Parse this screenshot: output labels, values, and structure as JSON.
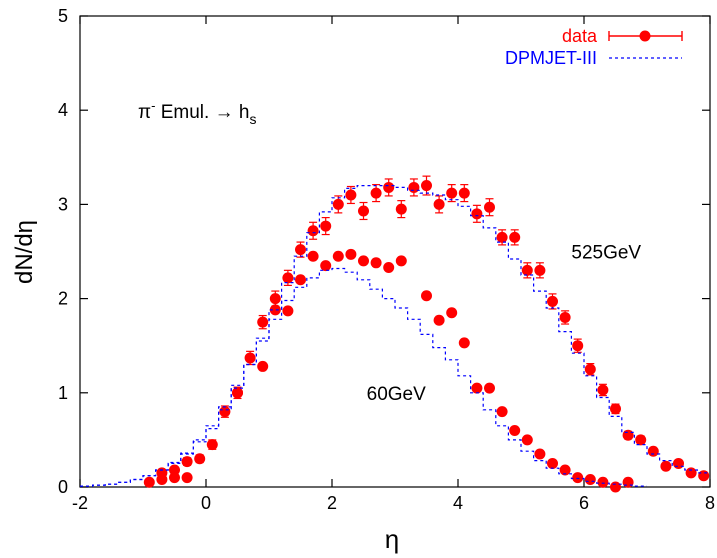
{
  "chart_data": {
    "type": "scatter",
    "xlabel": "η",
    "ylabel": "dN/dη",
    "xlim": [
      -2,
      8
    ],
    "ylim": [
      0,
      5
    ],
    "xticks": [
      "-2",
      "0",
      "2",
      "4",
      "6",
      "8"
    ],
    "yticks": [
      "0",
      "1",
      "2",
      "3",
      "4",
      "5"
    ],
    "grid": false,
    "legend_position": "top-right",
    "annotation": {
      "main": "π",
      "sup": "-",
      "rest": " Emul. → h",
      "sub": "s"
    },
    "labels": [
      {
        "text": "525GeV",
        "x": 5.8,
        "y": 2.5
      },
      {
        "text": "60GeV",
        "x": 2.55,
        "y": 1.0
      }
    ],
    "legend": [
      {
        "name": "data",
        "style": "points",
        "color": "#ff0000"
      },
      {
        "name": "DPMJET-III",
        "style": "dashed",
        "color": "#0000ff"
      }
    ],
    "series": [
      {
        "name": "data",
        "group": "525GeV",
        "color": "#ff0000",
        "x": [
          -0.9,
          -0.7,
          -0.5,
          -0.3,
          -0.1,
          0.1,
          0.3,
          0.5,
          0.7,
          0.9,
          1.1,
          1.3,
          1.5,
          1.7,
          1.9,
          2.1,
          2.3,
          2.5,
          2.7,
          2.9,
          3.1,
          3.3,
          3.5,
          3.7,
          3.9,
          4.1,
          4.3,
          4.5,
          4.7,
          4.9,
          5.1,
          5.3,
          5.5,
          5.7,
          5.9,
          6.1,
          6.3,
          6.5,
          6.7,
          6.9,
          7.1,
          7.3,
          7.5,
          7.7,
          7.9
        ],
        "y": [
          0.05,
          0.15,
          0.18,
          0.27,
          0.3,
          0.45,
          0.8,
          1.0,
          1.37,
          1.75,
          2.0,
          2.22,
          2.52,
          2.72,
          2.77,
          3.0,
          3.1,
          2.93,
          3.12,
          3.18,
          2.95,
          3.18,
          3.2,
          3.0,
          3.12,
          3.12,
          2.9,
          2.97,
          2.65,
          2.65,
          2.3,
          2.3,
          1.97,
          1.8,
          1.5,
          1.25,
          1.03,
          0.83,
          0.55,
          0.5,
          0.38,
          0.22,
          0.25,
          0.15,
          0.12
        ],
        "err": [
          0.02,
          0.03,
          0.03,
          0.04,
          0.04,
          0.05,
          0.06,
          0.06,
          0.07,
          0.07,
          0.08,
          0.08,
          0.08,
          0.09,
          0.09,
          0.09,
          0.09,
          0.09,
          0.09,
          0.09,
          0.09,
          0.09,
          0.1,
          0.09,
          0.09,
          0.09,
          0.09,
          0.09,
          0.08,
          0.08,
          0.08,
          0.08,
          0.08,
          0.07,
          0.07,
          0.06,
          0.06,
          0.05,
          0.04,
          0.04,
          0.03,
          0.03,
          0.03,
          0.02,
          0.02
        ]
      },
      {
        "name": "data",
        "group": "60GeV",
        "color": "#ff0000",
        "x": [
          -0.7,
          -0.5,
          -0.3,
          0.5,
          0.9,
          1.1,
          1.3,
          1.5,
          1.7,
          1.9,
          2.1,
          2.3,
          2.5,
          2.7,
          2.9,
          3.1,
          3.5,
          3.7,
          3.9,
          4.1,
          4.3,
          4.5,
          4.7,
          4.9,
          5.1,
          5.3,
          5.5,
          5.7,
          5.9,
          6.1,
          6.3,
          6.5,
          6.7
        ],
        "y": [
          0.08,
          0.1,
          0.1,
          1.0,
          1.28,
          1.88,
          1.87,
          2.2,
          2.45,
          2.35,
          2.45,
          2.47,
          2.4,
          2.38,
          2.33,
          2.4,
          2.03,
          1.77,
          1.85,
          1.53,
          1.05,
          1.05,
          0.8,
          0.6,
          0.5,
          0.35,
          0.25,
          0.18,
          0.1,
          0.08,
          0.05,
          0.0,
          0.05
        ]
      },
      {
        "name": "DPMJET-III",
        "group": "525GeV",
        "color": "#0000ff",
        "style": "dashed-step",
        "x": [
          -2.0,
          -1.8,
          -1.6,
          -1.4,
          -1.2,
          -1.0,
          -0.8,
          -0.6,
          -0.4,
          -0.2,
          0.0,
          0.2,
          0.4,
          0.6,
          0.8,
          1.0,
          1.2,
          1.4,
          1.6,
          1.8,
          2.0,
          2.2,
          2.4,
          2.6,
          2.8,
          3.0,
          3.2,
          3.4,
          3.6,
          3.8,
          4.0,
          4.2,
          4.4,
          4.6,
          4.8,
          5.0,
          5.2,
          5.4,
          5.6,
          5.8,
          6.0,
          6.2,
          6.4,
          6.6,
          6.8,
          7.0,
          7.2,
          7.4,
          7.6,
          7.8
        ],
        "y": [
          0.01,
          0.02,
          0.03,
          0.05,
          0.08,
          0.12,
          0.18,
          0.25,
          0.35,
          0.48,
          0.62,
          0.82,
          1.05,
          1.3,
          1.58,
          1.88,
          2.17,
          2.45,
          2.7,
          2.92,
          3.07,
          3.17,
          3.2,
          3.2,
          3.2,
          3.18,
          3.15,
          3.12,
          3.1,
          3.05,
          2.98,
          2.88,
          2.75,
          2.6,
          2.42,
          2.25,
          2.08,
          1.9,
          1.65,
          1.42,
          1.18,
          0.95,
          0.75,
          0.58,
          0.45,
          0.35,
          0.28,
          0.22,
          0.18,
          0.15
        ]
      },
      {
        "name": "DPMJET-III",
        "group": "60GeV",
        "color": "#0000ff",
        "style": "dashed-step",
        "x": [
          -2.0,
          -1.8,
          -1.6,
          -1.4,
          -1.2,
          -1.0,
          -0.8,
          -0.6,
          -0.4,
          -0.2,
          0.0,
          0.2,
          0.4,
          0.6,
          0.8,
          1.0,
          1.2,
          1.4,
          1.6,
          1.8,
          2.0,
          2.2,
          2.4,
          2.6,
          2.8,
          3.0,
          3.2,
          3.4,
          3.6,
          3.8,
          4.0,
          4.2,
          4.4,
          4.6,
          4.8,
          5.0,
          5.2,
          5.4,
          5.6,
          5.8,
          6.0,
          6.2,
          6.4,
          6.6,
          6.8
        ],
        "y": [
          0.01,
          0.02,
          0.03,
          0.05,
          0.08,
          0.12,
          0.18,
          0.26,
          0.36,
          0.5,
          0.65,
          0.85,
          1.08,
          1.3,
          1.55,
          1.78,
          1.98,
          2.12,
          2.22,
          2.3,
          2.32,
          2.28,
          2.2,
          2.1,
          2.0,
          1.9,
          1.78,
          1.62,
          1.48,
          1.35,
          1.18,
          1.0,
          0.82,
          0.65,
          0.5,
          0.38,
          0.28,
          0.2,
          0.14,
          0.09,
          0.06,
          0.04,
          0.03,
          0.02,
          0.01
        ]
      }
    ]
  }
}
